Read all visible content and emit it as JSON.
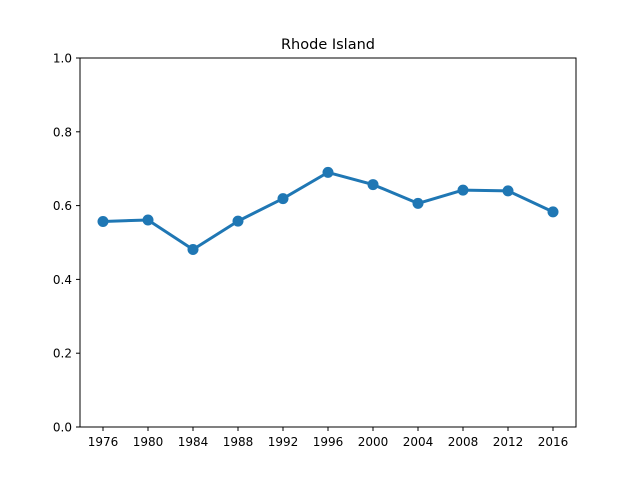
{
  "chart_data": {
    "type": "line",
    "title": "Rhode Island",
    "xlabel": "",
    "ylabel": "",
    "categories": [
      "1976",
      "1980",
      "1984",
      "1988",
      "1992",
      "1996",
      "2000",
      "2004",
      "2008",
      "2012",
      "2016"
    ],
    "series": [
      {
        "values": [
          0.557,
          0.561,
          0.481,
          0.558,
          0.619,
          0.69,
          0.657,
          0.606,
          0.642,
          0.64,
          0.583
        ],
        "color": "#1f77b4"
      }
    ],
    "ylim": [
      0,
      1.0
    ],
    "yticks": [
      "0.0",
      "0.2",
      "0.4",
      "0.6",
      "0.8",
      "1.0"
    ],
    "grid": false,
    "legend": "none"
  }
}
